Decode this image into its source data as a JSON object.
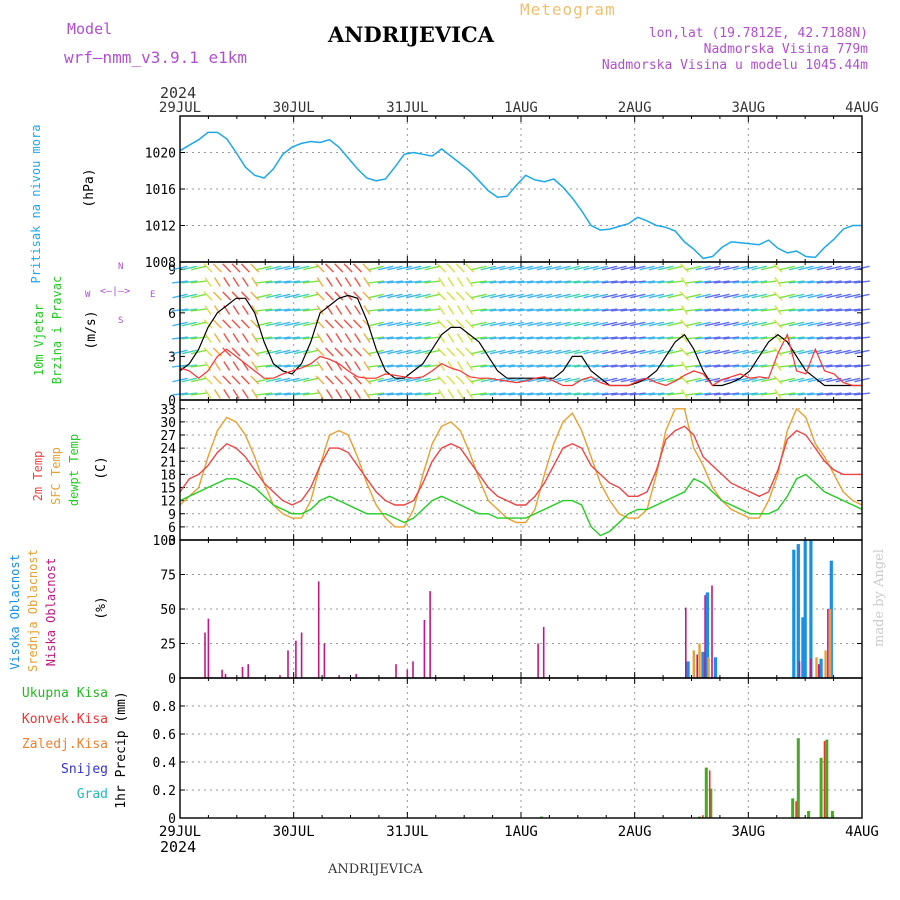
{
  "header": {
    "model_label": "Model",
    "model_name": "wrf—nmm_v3.9.1  e1km",
    "station": "ANDRIJEVICA",
    "product": "Meteogram",
    "lonlat": "lon,lat (19.7812E, 42.7188N)",
    "elev": "Nadmorska Visina 779m",
    "elev_model": "Nadmorska Visina u modelu 1045.44m",
    "year_top": "2024",
    "year_bottom": "2024",
    "footer_station": "ANDRIJEVICA",
    "watermark": "made by Angel"
  },
  "colors": {
    "pressure": "#1ea8e8",
    "temp2m": "#ee4444",
    "sfc": "#e8a030",
    "dewpt": "#22cc22",
    "low_cloud": "#c01880",
    "mid_cloud": "#e8a030",
    "high_cloud": "#1890e8",
    "total_precip": "#44aa22",
    "convective": "#ee3333",
    "frozen": "#f08030",
    "snow": "#3333cc",
    "hail": "#22bbbb"
  },
  "chart_data": [
    {
      "type": "line",
      "id": "pressure",
      "ylabel": "(hPa)",
      "side_labels": [
        {
          "text": "Pritisak na nivou mora",
          "color": "#1ea8e8"
        }
      ],
      "x_tick_labels": [
        "29JUL",
        "30JUL",
        "31JUL",
        "1AUG",
        "2AUG",
        "3AUG",
        "4AUG"
      ],
      "ylim": [
        1008,
        1024
      ],
      "y_ticks": [
        1008,
        1012,
        1016,
        1020
      ],
      "grid": true,
      "series": [
        {
          "values": [
            1020.2,
            1020.8,
            1021.4,
            1022.2,
            1022.2,
            1021.5,
            1020.0,
            1018.4,
            1017.5,
            1017.2,
            1018.2,
            1019.8,
            1020.6,
            1021.0,
            1021.2,
            1021.1,
            1021.4,
            1020.6,
            1019.4,
            1018.2,
            1017.2,
            1016.9,
            1017.1,
            1018.4,
            1019.8,
            1020.0,
            1019.8,
            1019.6,
            1020.4,
            1019.6,
            1018.8,
            1018.0,
            1016.9,
            1015.8,
            1015.1,
            1015.2,
            1016.4,
            1017.5,
            1017.0,
            1016.8,
            1017.1,
            1016.2,
            1015.0,
            1013.6,
            1012.0,
            1011.5,
            1011.6,
            1011.9,
            1012.2,
            1012.9,
            1012.5,
            1012.0,
            1011.8,
            1011.4,
            1010.2,
            1009.4,
            1008.4,
            1008.6,
            1009.6,
            1010.2,
            1010.1,
            1010.0,
            1009.9,
            1010.4,
            1009.5,
            1009.0,
            1009.2,
            1008.6,
            1008.5,
            1009.6,
            1010.5,
            1011.6,
            1012.0,
            1012.0
          ]
        }
      ]
    },
    {
      "type": "line",
      "id": "wind",
      "ylabel": "(m/s)",
      "side_labels": [
        {
          "text": "10m Vjetar",
          "color": "#22cc22"
        },
        {
          "text": "Brzina i Pravac",
          "color": "#22cc22"
        }
      ],
      "compass": {
        "n": "N",
        "s": "S",
        "e": "E",
        "w": "W"
      },
      "ylim": [
        0,
        9.5
      ],
      "y_ticks": [
        0,
        3,
        6,
        9
      ],
      "grid": true,
      "series": [
        {
          "name": "speed",
          "values": [
            2.0,
            2.5,
            3.5,
            5.0,
            6.0,
            6.5,
            7.0,
            7.0,
            6.0,
            4.0,
            2.5,
            2.0,
            1.8,
            2.5,
            4.0,
            6.0,
            6.5,
            7.0,
            7.2,
            7.0,
            5.5,
            3.5,
            2.0,
            1.5,
            1.5,
            2.0,
            2.5,
            3.5,
            4.5,
            5.0,
            5.0,
            4.5,
            4.0,
            3.0,
            2.0,
            1.5,
            1.5,
            1.5,
            1.5,
            1.5,
            1.5,
            2.0,
            3.0,
            3.0,
            2.0,
            1.5,
            1.0,
            1.0,
            1.0,
            1.2,
            1.5,
            2.0,
            3.0,
            4.0,
            4.5,
            3.5,
            2.0,
            1.0,
            1.0,
            1.2,
            1.5,
            2.0,
            3.0,
            4.0,
            4.5,
            4.0,
            3.0,
            2.0,
            1.5,
            1.0,
            1.0,
            1.0,
            1.0,
            1.0
          ]
        },
        {
          "name": "gust",
          "values": [
            2.2,
            2.0,
            1.5,
            2.0,
            3.0,
            3.5,
            3.0,
            2.5,
            2.0,
            1.5,
            1.5,
            1.8,
            2.0,
            2.2,
            2.5,
            3.0,
            2.8,
            2.5,
            2.0,
            1.6,
            1.5,
            1.5,
            1.8,
            1.7,
            1.6,
            1.5,
            1.6,
            2.0,
            2.5,
            2.2,
            2.0,
            1.6,
            1.5,
            1.5,
            1.4,
            1.3,
            1.2,
            1.3,
            1.5,
            1.6,
            1.3,
            1.0,
            1.0,
            1.4,
            1.6,
            1.2,
            1.0,
            1.0,
            1.0,
            1.3,
            1.5,
            1.2,
            1.0,
            1.3,
            1.7,
            2.0,
            1.8,
            1.0,
            1.4,
            1.6,
            1.8,
            1.5,
            1.6,
            1.5,
            3.2,
            4.5,
            2.0,
            1.8,
            3.5,
            2.0,
            1.8,
            1.2,
            1.0,
            1.0
          ]
        }
      ]
    },
    {
      "type": "line",
      "id": "temperature",
      "ylabel": "(C)",
      "side_labels": [
        {
          "text": "2m Temp",
          "color": "#ee4444"
        },
        {
          "text": "SFC Temp",
          "color": "#e8a030"
        },
        {
          "text": "dewpt Temp",
          "color": "#22cc22"
        }
      ],
      "ylim": [
        3,
        35
      ],
      "y_ticks": [
        3,
        6,
        9,
        12,
        15,
        18,
        21,
        24,
        27,
        30,
        33
      ],
      "grid": true,
      "series": [
        {
          "name": "2m Temp",
          "values": [
            14,
            17,
            18,
            20,
            23,
            25,
            24,
            22,
            19,
            16,
            14,
            12,
            11,
            12,
            15,
            20,
            24,
            24,
            23,
            20,
            17,
            14,
            12,
            11,
            11,
            12,
            16,
            21,
            24,
            25,
            24,
            21,
            18,
            15,
            13,
            12,
            11,
            11,
            13,
            16,
            20,
            24,
            25,
            24,
            20,
            18,
            16,
            15,
            13,
            13,
            14,
            19,
            26,
            28,
            29,
            27,
            22,
            20,
            18,
            16,
            15,
            14,
            13,
            14,
            19,
            26,
            28,
            27,
            24,
            21,
            19,
            18,
            18,
            18
          ]
        },
        {
          "name": "SFC Temp",
          "values": [
            11,
            13,
            15,
            22,
            28,
            31,
            30,
            27,
            22,
            16,
            11,
            9,
            8,
            8,
            12,
            20,
            27,
            28,
            27,
            22,
            16,
            11,
            8,
            6,
            6,
            10,
            18,
            25,
            29,
            30,
            28,
            23,
            17,
            12,
            10,
            8,
            7,
            7,
            10,
            18,
            25,
            30,
            32,
            28,
            22,
            16,
            12,
            9,
            8,
            8,
            10,
            18,
            28,
            33,
            33,
            24,
            20,
            15,
            12,
            10,
            9,
            8,
            8,
            12,
            18,
            28,
            33,
            31,
            25,
            22,
            18,
            14,
            12,
            11
          ]
        },
        {
          "name": "dewpt Temp",
          "values": [
            12,
            13,
            14,
            15,
            16,
            17,
            17,
            16,
            15,
            13,
            11,
            10,
            9,
            9,
            10,
            12,
            13,
            12,
            11,
            10,
            9,
            9,
            9,
            8,
            7,
            8,
            10,
            12,
            13,
            12,
            11,
            10,
            9,
            9,
            8,
            8,
            8,
            8,
            9,
            10,
            11,
            12,
            12,
            11,
            6,
            4,
            5,
            7,
            9,
            10,
            10,
            11,
            12,
            13,
            14,
            17,
            16,
            14,
            12,
            11,
            10,
            9,
            9,
            9,
            10,
            13,
            17,
            18,
            16,
            14,
            13,
            12,
            11,
            10
          ]
        }
      ]
    },
    {
      "type": "bar",
      "id": "clouds",
      "ylabel": "(%)",
      "side_labels": [
        {
          "text": "Visoka Oblacnost",
          "color": "#1890e8"
        },
        {
          "text": "Srednja Oblacnost",
          "color": "#e8a030"
        },
        {
          "text": "Niska Oblacnost",
          "color": "#c01880"
        }
      ],
      "ylim": [
        0,
        100
      ],
      "y_ticks": [
        0,
        25,
        50,
        75,
        100
      ],
      "grid": true,
      "series": [
        {
          "name": "Niska",
          "bars": [
            [
              0.22,
              33
            ],
            [
              0.25,
              43
            ],
            [
              0.37,
              6
            ],
            [
              0.4,
              3
            ],
            [
              0.55,
              8
            ],
            [
              0.6,
              10
            ],
            [
              0.88,
              2
            ],
            [
              0.95,
              20
            ],
            [
              1.02,
              27
            ],
            [
              1.07,
              33
            ],
            [
              1.22,
              70
            ],
            [
              1.27,
              25
            ],
            [
              1.4,
              2
            ],
            [
              1.55,
              3
            ],
            [
              1.9,
              10
            ],
            [
              2.0,
              6
            ],
            [
              2.05,
              12
            ],
            [
              2.15,
              42
            ],
            [
              2.2,
              63
            ],
            [
              3.15,
              25
            ],
            [
              3.2,
              37
            ],
            [
              4.45,
              51
            ],
            [
              4.55,
              17
            ],
            [
              4.62,
              60
            ],
            [
              4.68,
              67
            ],
            [
              5.45,
              12
            ],
            [
              5.55,
              14
            ],
            [
              5.62,
              10
            ],
            [
              5.7,
              50
            ]
          ]
        },
        {
          "name": "Srednja",
          "bars": [
            [
              4.52,
              20
            ],
            [
              4.57,
              25
            ],
            [
              4.65,
              15
            ],
            [
              5.6,
              15
            ],
            [
              5.68,
              20
            ],
            [
              5.72,
              50
            ]
          ]
        },
        {
          "name": "Visoka",
          "bars": [
            [
              4.47,
              12
            ],
            [
              4.6,
              19
            ],
            [
              4.64,
              62
            ],
            [
              4.71,
              15
            ],
            [
              5.4,
              93
            ],
            [
              5.44,
              97
            ],
            [
              5.48,
              44
            ],
            [
              5.5,
              100
            ],
            [
              5.55,
              100
            ],
            [
              5.64,
              14
            ],
            [
              5.73,
              85
            ]
          ]
        }
      ]
    },
    {
      "type": "bar",
      "id": "precip",
      "ylabel": "1hr Precip (mm)",
      "side_labels": [
        {
          "text": "Ukupna Kisa",
          "color": "#22bb22"
        },
        {
          "text": "Konvek.Kisa",
          "color": "#ee3333"
        },
        {
          "text": "Zaledj.Kisa",
          "color": "#f08030"
        },
        {
          "text": "Snijeg",
          "color": "#3333cc"
        },
        {
          "text": "Grad",
          "color": "#22bbbb"
        }
      ],
      "ylim": [
        0,
        1.0
      ],
      "y_ticks": [
        0,
        0.2,
        0.4,
        0.6,
        0.8
      ],
      "grid": true,
      "series": [
        {
          "name": "Ukupna Kisa",
          "bars": [
            [
              3.18,
              0.01
            ],
            [
              4.57,
              0.01
            ],
            [
              4.63,
              0.36
            ],
            [
              4.67,
              0.21
            ],
            [
              5.39,
              0.14
            ],
            [
              5.44,
              0.57
            ],
            [
              5.53,
              0.05
            ],
            [
              5.64,
              0.43
            ],
            [
              5.69,
              0.56
            ],
            [
              5.74,
              0.05
            ]
          ]
        },
        {
          "name": "Konvek.Kisa",
          "bars": [
            [
              4.6,
              0.02
            ],
            [
              4.66,
              0.34
            ],
            [
              5.42,
              0.12
            ],
            [
              5.67,
              0.55
            ]
          ]
        }
      ]
    }
  ]
}
